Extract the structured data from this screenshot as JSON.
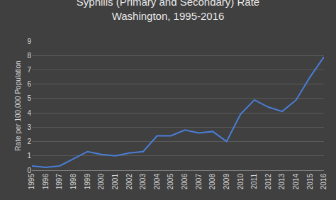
{
  "chart_data": {
    "type": "line",
    "title": "Syphilis (Primary and Secondary) Rate",
    "subtitle": "Washington, 1995-2016",
    "y_label": "Rate per 100,000 Population",
    "categories": [
      "1995",
      "1996",
      "1997",
      "1998",
      "1999",
      "2000",
      "2001",
      "2002",
      "2003",
      "2004",
      "2005",
      "2006",
      "2007",
      "2008",
      "2009",
      "2010",
      "2011",
      "2012",
      "2013",
      "2014",
      "2015",
      "2016"
    ],
    "values": [
      0.3,
      0.2,
      0.3,
      0.8,
      1.3,
      1.1,
      1.0,
      1.2,
      1.3,
      2.4,
      2.4,
      2.8,
      2.6,
      2.7,
      2.0,
      3.9,
      4.9,
      4.4,
      4.1,
      4.9,
      6.5,
      7.9
    ],
    "color": "#4a7ed6",
    "ylim": [
      0,
      9
    ],
    "yticks": [
      0,
      1,
      2,
      3,
      4,
      5,
      6,
      7,
      8,
      9
    ],
    "grid": true
  }
}
